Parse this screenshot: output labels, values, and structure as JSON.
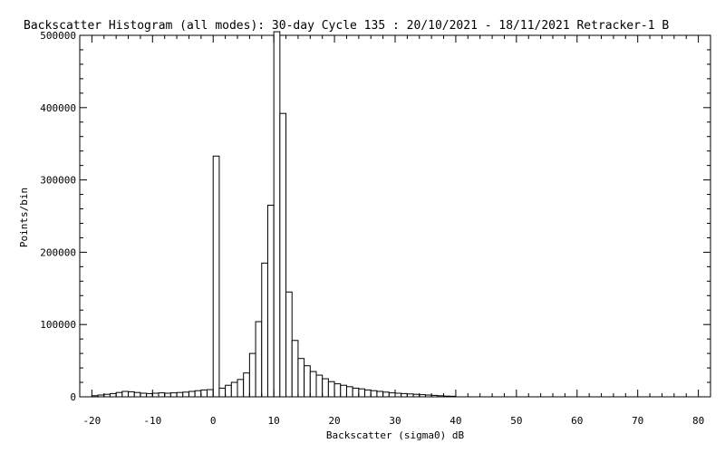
{
  "chart_data": {
    "type": "bar",
    "title": "Backscatter Histogram (all modes): 30-day Cycle 135 : 20/10/2021 - 18/11/2021 Retracker-1 B",
    "xlabel": "Backscatter (sigma0) dB",
    "ylabel": "Points/bin",
    "xlim": [
      -22,
      82
    ],
    "ylim": [
      0,
      500000
    ],
    "xticks": [
      -20,
      -10,
      0,
      10,
      20,
      30,
      40,
      50,
      60,
      70,
      80
    ],
    "yticks": [
      0,
      100000,
      200000,
      300000,
      400000,
      500000
    ],
    "grid": false,
    "bin_width": 1,
    "bin_start": -20,
    "values": [
      1500,
      2500,
      3500,
      4500,
      6000,
      7500,
      7000,
      6000,
      5000,
      4500,
      5000,
      5500,
      5000,
      5500,
      6000,
      6500,
      7500,
      8500,
      9500,
      10000,
      333000,
      12000,
      16000,
      20000,
      24000,
      33000,
      60000,
      104000,
      185000,
      265000,
      505000,
      392000,
      145000,
      78000,
      53000,
      43000,
      35000,
      30000,
      25000,
      21000,
      18000,
      16000,
      14000,
      12000,
      11000,
      9500,
      8500,
      7500,
      6500,
      5500,
      5000,
      4500,
      4000,
      3500,
      3000,
      2500,
      2000,
      1500,
      1000,
      800
    ]
  }
}
